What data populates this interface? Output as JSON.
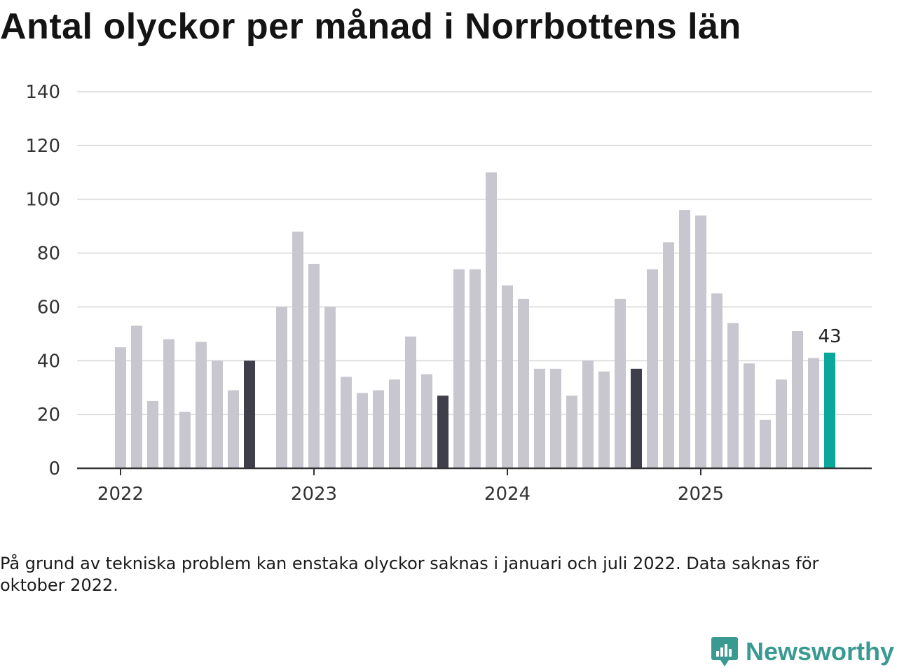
{
  "title": "Antal olyckor per månad i Norrbottens län",
  "chart_data": {
    "type": "bar",
    "title": "Antal olyckor per månad i Norrbottens län",
    "xlabel": "",
    "ylabel": "",
    "ylim": [
      0,
      140
    ],
    "yticks": [
      0,
      20,
      40,
      60,
      80,
      100,
      120,
      140
    ],
    "year_labels": [
      "2022",
      "2023",
      "2024",
      "2025"
    ],
    "categories": [
      "2022-01",
      "2022-02",
      "2022-03",
      "2022-04",
      "2022-05",
      "2022-06",
      "2022-07",
      "2022-08",
      "2022-09",
      "2022-10",
      "2022-11",
      "2022-12",
      "2023-01",
      "2023-02",
      "2023-03",
      "2023-04",
      "2023-05",
      "2023-06",
      "2023-07",
      "2023-08",
      "2023-09",
      "2023-10",
      "2023-11",
      "2023-12",
      "2024-01",
      "2024-02",
      "2024-03",
      "2024-04",
      "2024-05",
      "2024-06",
      "2024-07",
      "2024-08",
      "2024-09",
      "2024-10",
      "2024-11",
      "2024-12",
      "2025-01",
      "2025-02",
      "2025-03",
      "2025-04",
      "2025-05",
      "2025-06",
      "2025-07",
      "2025-08",
      "2025-09"
    ],
    "values": [
      45,
      53,
      25,
      48,
      21,
      47,
      40,
      29,
      40,
      null,
      60,
      88,
      76,
      60,
      34,
      28,
      29,
      33,
      49,
      35,
      27,
      74,
      74,
      110,
      68,
      63,
      37,
      37,
      27,
      40,
      36,
      63,
      37,
      74,
      84,
      96,
      94,
      65,
      54,
      39,
      18,
      33,
      51,
      41,
      43
    ],
    "highlight": {
      "september_color": "#3f3f4c",
      "latest_color": "#0aa89a",
      "default_color": "#c8c7d0"
    },
    "annotation": {
      "category": "2025-09",
      "label": "43"
    }
  },
  "footnote": "På grund av tekniska problem kan enstaka olyckor saknas i januari och juli 2022. Data saknas för oktober 2022.",
  "brand": {
    "name": "Newsworthy",
    "color": "#3a9a92"
  }
}
